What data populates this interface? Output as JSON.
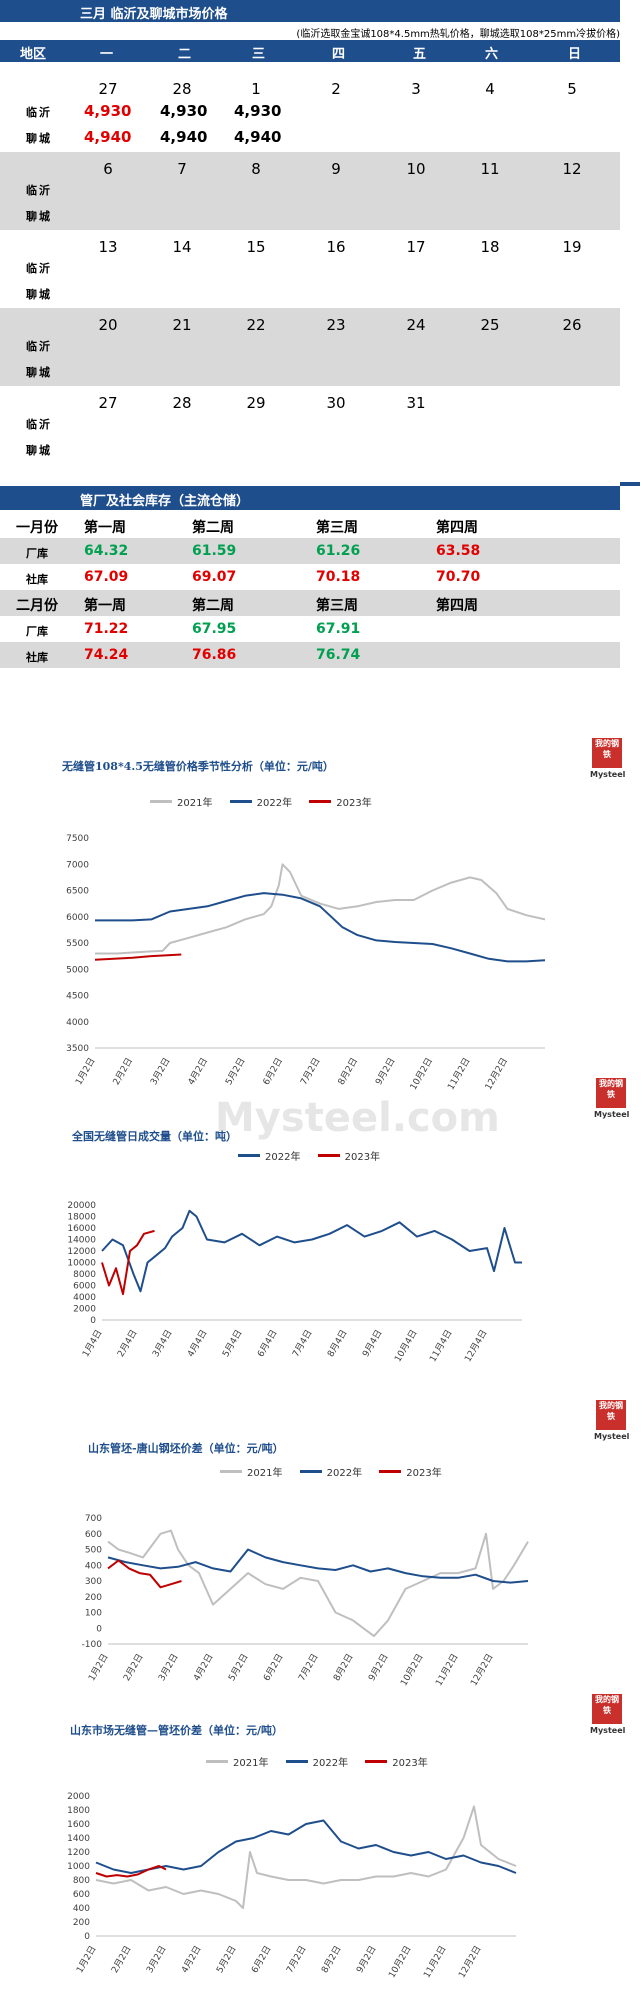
{
  "calendar": {
    "title": "三月  临沂及聊城市场价格",
    "note": "(临沂选取金宝诚108*4.5mm热轧价格，聊城选取108*25mm冷拔价格)",
    "headers": [
      "地区",
      "一",
      "二",
      "三",
      "四",
      "五",
      "六",
      "日"
    ],
    "city1": "临沂",
    "city2": "聊城",
    "weeks": [
      {
        "days": [
          "27",
          "28",
          "1",
          "2",
          "3",
          "4",
          "5"
        ],
        "linyi": [
          "4,930",
          "4,930",
          "4,930"
        ],
        "liaocheng": [
          "4,940",
          "4,940",
          "4,940"
        ]
      },
      {
        "days": [
          "6",
          "7",
          "8",
          "9",
          "10",
          "11",
          "12"
        ]
      },
      {
        "days": [
          "13",
          "14",
          "15",
          "16",
          "17",
          "18",
          "19"
        ]
      },
      {
        "days": [
          "20",
          "21",
          "22",
          "23",
          "24",
          "25",
          "26"
        ]
      },
      {
        "days": [
          "27",
          "28",
          "29",
          "30",
          "31"
        ]
      }
    ]
  },
  "inventory": {
    "title": "管厂及社会库存（主流仓储）",
    "month1": "一月份",
    "month2": "二月份",
    "weeks": [
      "第一周",
      "第二周",
      "第三周",
      "第四周"
    ],
    "factory_label": "厂库",
    "social_label": "社库",
    "jan_factory": [
      "64.32",
      "61.59",
      "61.26",
      "63.58"
    ],
    "jan_social": [
      "67.09",
      "69.07",
      "70.18",
      "70.70"
    ],
    "feb_factory": [
      "71.22",
      "67.95",
      "67.91"
    ],
    "feb_social": [
      "74.24",
      "76.86",
      "76.74"
    ],
    "colors": {
      "up": "#e00000",
      "down": "#00a050"
    }
  },
  "logo": {
    "text": "我的钢铁",
    "brand": "Mysteel",
    "watermark": "Mysteel.com"
  },
  "chart_data": [
    {
      "type": "line",
      "title": "无缝管108*4.5无缝管价格季节性分析（单位：元/吨）",
      "x_ticks": [
        "1月2日",
        "2月2日",
        "3月2日",
        "4月2日",
        "5月2日",
        "6月2日",
        "7月2日",
        "8月2日",
        "9月2日",
        "10月2日",
        "11月2日",
        "12月2日"
      ],
      "ylim": [
        3500,
        7500
      ],
      "y_ticks": [
        "3500",
        "4000",
        "4500",
        "5000",
        "5500",
        "6000",
        "6500",
        "7000",
        "7500"
      ],
      "series": [
        {
          "name": "2021年",
          "color": "#bfbfbf",
          "x": [
            0,
            0.6,
            1,
            1.5,
            1.8,
            2,
            2.5,
            3,
            3.5,
            4,
            4.5,
            4.7,
            4.9,
            5,
            5.2,
            5.5,
            6,
            6.5,
            7,
            7.5,
            8,
            8.5,
            9,
            9.5,
            10,
            10.3,
            10.7,
            11,
            11.5,
            12
          ],
          "values": [
            5300,
            5300,
            5320,
            5340,
            5350,
            5500,
            5600,
            5700,
            5800,
            5950,
            6050,
            6200,
            6600,
            7000,
            6850,
            6400,
            6250,
            6150,
            6200,
            6280,
            6320,
            6320,
            6500,
            6650,
            6750,
            6700,
            6450,
            6150,
            6030,
            5950
          ]
        },
        {
          "name": "2022年",
          "color": "#1f4e8c",
          "x": [
            0,
            0.5,
            1,
            1.5,
            2,
            2.5,
            3,
            3.5,
            4,
            4.5,
            5,
            5.5,
            6,
            6.3,
            6.6,
            7,
            7.5,
            8,
            8.5,
            9,
            9.5,
            10,
            10.5,
            11,
            11.5,
            12
          ],
          "values": [
            5930,
            5930,
            5930,
            5950,
            6100,
            6150,
            6200,
            6300,
            6400,
            6450,
            6420,
            6350,
            6200,
            6000,
            5800,
            5650,
            5550,
            5520,
            5500,
            5480,
            5400,
            5300,
            5200,
            5150,
            5150,
            5170
          ]
        },
        {
          "name": "2023年",
          "color": "#c00000",
          "x": [
            0,
            0.5,
            1,
            1.5,
            2,
            2.3
          ],
          "values": [
            5180,
            5200,
            5220,
            5250,
            5270,
            5280
          ]
        }
      ]
    },
    {
      "type": "line",
      "title": "全国无缝管日成交量（单位：吨）",
      "x_ticks": [
        "1月4日",
        "2月4日",
        "3月4日",
        "4月4日",
        "5月4日",
        "6月4日",
        "7月4日",
        "8月4日",
        "9月4日",
        "10月4日",
        "11月4日",
        "12月4日"
      ],
      "ylim": [
        0,
        20000
      ],
      "y_ticks": [
        "0",
        "2000",
        "4000",
        "6000",
        "8000",
        "10000",
        "12000",
        "14000",
        "16000",
        "18000",
        "20000"
      ],
      "series": [
        {
          "name": "2022年",
          "color": "#1f4e8c",
          "x": [
            0,
            0.3,
            0.6,
            0.9,
            1.1,
            1.3,
            1.5,
            1.8,
            2,
            2.3,
            2.5,
            2.7,
            3,
            3.5,
            4,
            4.5,
            5,
            5.5,
            6,
            6.5,
            7,
            7.5,
            8,
            8.5,
            9,
            9.5,
            10,
            10.5,
            11,
            11.2,
            11.5,
            11.8,
            12
          ],
          "values": [
            12000,
            14000,
            13000,
            8000,
            5000,
            10000,
            11000,
            12500,
            14500,
            16000,
            19000,
            18000,
            14000,
            13500,
            15000,
            13000,
            14500,
            13500,
            14000,
            15000,
            16500,
            14500,
            15500,
            17000,
            14500,
            15500,
            14000,
            12000,
            12500,
            8500,
            16000,
            10000,
            10000
          ]
        },
        {
          "name": "2023年",
          "color": "#c00000",
          "x": [
            0,
            0.2,
            0.4,
            0.6,
            0.8,
            1,
            1.2,
            1.5
          ],
          "values": [
            10000,
            6000,
            9000,
            4500,
            12000,
            13000,
            15000,
            15500
          ]
        }
      ]
    },
    {
      "type": "line",
      "title": "山东管坯-唐山钢坯价差（单位：元/吨）",
      "x_ticks": [
        "1月2日",
        "2月2日",
        "3月2日",
        "4月2日",
        "5月2日",
        "6月2日",
        "7月2日",
        "8月2日",
        "9月2日",
        "10月2日",
        "11月2日",
        "12月2日"
      ],
      "ylim": [
        -100,
        700
      ],
      "y_ticks": [
        "-100",
        "0",
        "100",
        "200",
        "300",
        "400",
        "500",
        "600",
        "700"
      ],
      "series": [
        {
          "name": "2021年",
          "color": "#bfbfbf",
          "x": [
            0,
            0.3,
            0.6,
            1,
            1.5,
            1.8,
            2,
            2.3,
            2.6,
            3,
            3.5,
            4,
            4.5,
            5,
            5.5,
            6,
            6.5,
            7,
            7.3,
            7.6,
            8,
            8.5,
            9,
            9.5,
            10,
            10.5,
            10.8,
            11,
            11.3,
            11.6,
            12
          ],
          "values": [
            550,
            500,
            480,
            450,
            600,
            620,
            500,
            400,
            350,
            150,
            250,
            350,
            280,
            250,
            320,
            300,
            100,
            50,
            0,
            -50,
            50,
            250,
            300,
            350,
            350,
            380,
            600,
            250,
            300,
            400,
            550
          ]
        },
        {
          "name": "2022年",
          "color": "#1f4e8c",
          "x": [
            0,
            0.5,
            1,
            1.5,
            2,
            2.5,
            3,
            3.5,
            4,
            4.5,
            5,
            5.5,
            6,
            6.5,
            7,
            7.5,
            8,
            8.5,
            9,
            9.5,
            10,
            10.5,
            11,
            11.5,
            12
          ],
          "values": [
            450,
            420,
            400,
            380,
            390,
            420,
            380,
            360,
            500,
            450,
            420,
            400,
            380,
            370,
            400,
            360,
            380,
            350,
            330,
            320,
            320,
            340,
            300,
            290,
            300
          ]
        },
        {
          "name": "2023年",
          "color": "#c00000",
          "x": [
            0,
            0.3,
            0.6,
            0.9,
            1.2,
            1.5,
            1.8,
            2.1
          ],
          "values": [
            380,
            430,
            380,
            350,
            340,
            260,
            280,
            300
          ]
        }
      ]
    },
    {
      "type": "line",
      "title": "山东市场无缝管—管坯价差（单位：元/吨）",
      "x_ticks": [
        "1月2日",
        "2月2日",
        "3月2日",
        "4月2日",
        "5月2日",
        "6月2日",
        "7月2日",
        "8月2日",
        "9月2日",
        "10月2日",
        "11月2日",
        "12月2日"
      ],
      "ylim": [
        0,
        2000
      ],
      "y_ticks": [
        "0",
        "200",
        "400",
        "600",
        "800",
        "1000",
        "1200",
        "1400",
        "1600",
        "1800",
        "2000"
      ],
      "series": [
        {
          "name": "2021年",
          "color": "#bfbfbf",
          "x": [
            0,
            0.5,
            1,
            1.5,
            2,
            2.5,
            3,
            3.5,
            4,
            4.2,
            4.4,
            4.6,
            5,
            5.5,
            6,
            6.5,
            7,
            7.5,
            8,
            8.5,
            9,
            9.5,
            10,
            10.5,
            10.8,
            11,
            11.5,
            12
          ],
          "values": [
            800,
            750,
            800,
            650,
            700,
            600,
            650,
            600,
            500,
            400,
            1200,
            900,
            850,
            800,
            800,
            750,
            800,
            800,
            850,
            850,
            900,
            850,
            950,
            1400,
            1850,
            1300,
            1100,
            1000
          ]
        },
        {
          "name": "2022年",
          "color": "#1f4e8c",
          "x": [
            0,
            0.5,
            1,
            1.5,
            2,
            2.5,
            3,
            3.5,
            4,
            4.5,
            5,
            5.5,
            6,
            6.5,
            7,
            7.5,
            8,
            8.5,
            9,
            9.5,
            10,
            10.5,
            11,
            11.5,
            12
          ],
          "values": [
            1050,
            950,
            900,
            950,
            1000,
            950,
            1000,
            1200,
            1350,
            1400,
            1500,
            1450,
            1600,
            1650,
            1350,
            1250,
            1300,
            1200,
            1150,
            1200,
            1100,
            1150,
            1050,
            1000,
            900
          ]
        },
        {
          "name": "2023年",
          "color": "#c00000",
          "x": [
            0,
            0.3,
            0.6,
            0.9,
            1.2,
            1.5,
            1.8,
            2
          ],
          "values": [
            900,
            850,
            870,
            850,
            880,
            950,
            1000,
            950
          ]
        }
      ]
    }
  ]
}
